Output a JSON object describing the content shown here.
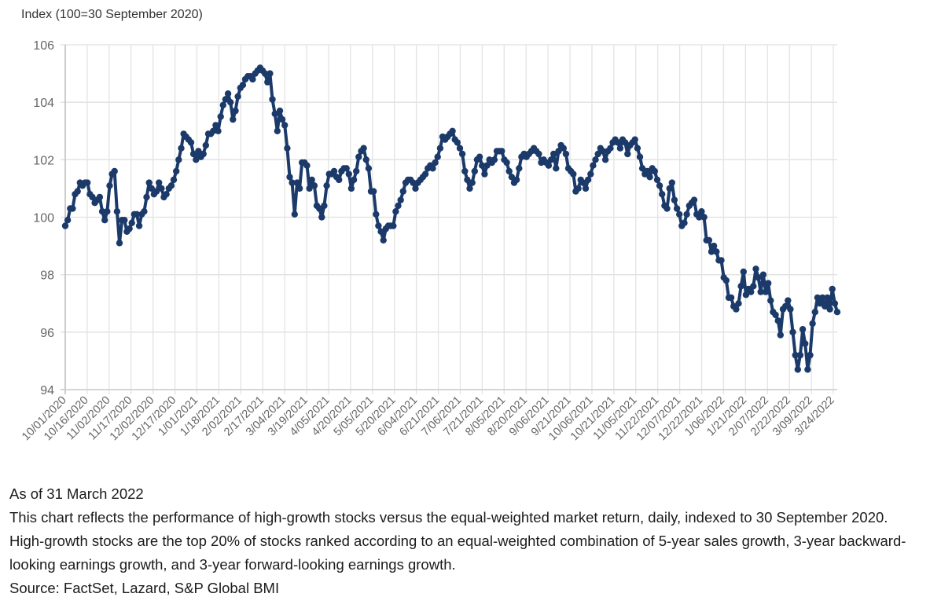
{
  "chart_data": {
    "type": "line",
    "title": "",
    "ylabel": "Index (100=30 September 2020)",
    "xlabel": "",
    "ylim": [
      94,
      106
    ],
    "yticks": [
      94,
      96,
      98,
      100,
      102,
      104,
      106
    ],
    "grid": true,
    "legend": "none",
    "line_color": "#1b3a6a",
    "xtick_labels": [
      "10/01/2020",
      "10/16/2020",
      "11/02/2020",
      "11/17/2020",
      "12/02/2020",
      "12/17/2020",
      "1/01/2021",
      "1/18/2021",
      "2/02/2021",
      "2/17/2021",
      "3/04/2021",
      "3/19/2021",
      "4/05/2021",
      "4/20/2021",
      "5/05/2021",
      "5/20/2021",
      "6/04/2021",
      "6/21/2021",
      "7/06/2021",
      "7/21/2021",
      "8/05/2021",
      "8/20/2021",
      "9/06/2021",
      "9/21/2021",
      "10/06/2021",
      "10/21/2021",
      "11/05/2021",
      "11/22/2021",
      "12/07/2021",
      "12/22/2021",
      "1/06/2022",
      "1/21/2022",
      "2/07/2022",
      "2/22/2022",
      "3/09/2022",
      "3/24/2022"
    ],
    "series": [
      {
        "name": "High-growth stocks vs equal-weighted market",
        "values": [
          99.7,
          99.9,
          100.3,
          100.3,
          100.8,
          100.9,
          101.2,
          101.1,
          101.2,
          101.2,
          100.8,
          100.7,
          100.5,
          100.6,
          100.7,
          100.2,
          99.9,
          100.2,
          101.1,
          101.5,
          101.6,
          100.2,
          99.1,
          99.9,
          99.9,
          99.5,
          99.6,
          99.8,
          100.1,
          100.1,
          99.7,
          100.1,
          100.2,
          100.7,
          101.2,
          101.0,
          100.8,
          100.9,
          101.2,
          101.0,
          100.7,
          100.8,
          101.0,
          101.1,
          101.3,
          101.6,
          102.0,
          102.4,
          102.9,
          102.8,
          102.7,
          102.6,
          102.2,
          102.0,
          102.3,
          102.1,
          102.2,
          102.5,
          102.9,
          102.9,
          103.0,
          103.2,
          103.0,
          103.5,
          103.9,
          104.1,
          104.3,
          104.0,
          103.4,
          103.7,
          104.2,
          104.5,
          104.6,
          104.8,
          104.9,
          104.9,
          104.8,
          105.0,
          105.1,
          105.2,
          105.1,
          105.0,
          104.7,
          105.0,
          104.1,
          103.6,
          103.0,
          103.7,
          103.4,
          103.2,
          102.4,
          101.4,
          101.2,
          100.1,
          101.2,
          101.0,
          101.9,
          101.9,
          101.8,
          101.0,
          101.3,
          101.1,
          100.4,
          100.3,
          100.0,
          100.4,
          101.1,
          101.5,
          101.5,
          101.6,
          101.4,
          101.3,
          101.6,
          101.7,
          101.7,
          101.5,
          101.0,
          101.3,
          101.6,
          102.1,
          102.3,
          102.4,
          102.0,
          101.7,
          100.9,
          100.9,
          100.1,
          99.7,
          99.5,
          99.2,
          99.6,
          99.7,
          99.7,
          99.7,
          100.2,
          100.4,
          100.6,
          100.9,
          101.2,
          101.3,
          101.3,
          101.2,
          101.0,
          101.2,
          101.3,
          101.4,
          101.5,
          101.7,
          101.8,
          101.7,
          101.9,
          102.1,
          102.4,
          102.8,
          102.7,
          102.8,
          102.9,
          103.0,
          102.7,
          102.6,
          102.4,
          102.2,
          101.6,
          101.3,
          101.0,
          101.2,
          101.6,
          102.0,
          102.1,
          101.8,
          101.5,
          101.8,
          102.0,
          101.9,
          102.0,
          102.3,
          102.3,
          102.3,
          102.0,
          101.9,
          101.6,
          101.4,
          101.2,
          101.3,
          101.7,
          102.1,
          102.2,
          102.1,
          102.2,
          102.3,
          102.4,
          102.3,
          102.2,
          101.9,
          102.0,
          101.9,
          101.8,
          102.0,
          102.2,
          101.7,
          102.3,
          102.5,
          102.4,
          102.2,
          101.7,
          101.6,
          101.5,
          100.9,
          101.0,
          101.3,
          101.2,
          101.0,
          101.3,
          101.5,
          101.8,
          102.0,
          102.2,
          102.4,
          102.3,
          102.0,
          102.3,
          102.4,
          102.6,
          102.7,
          102.6,
          102.4,
          102.7,
          102.6,
          102.2,
          102.5,
          102.6,
          102.7,
          102.4,
          102.1,
          101.7,
          101.5,
          101.6,
          101.4,
          101.7,
          101.6,
          101.3,
          101.1,
          100.8,
          100.4,
          100.3,
          101.0,
          101.2,
          100.6,
          100.3,
          100.1,
          99.7,
          99.8,
          100.1,
          100.4,
          100.5,
          100.6,
          100.1,
          100.0,
          100.2,
          100.0,
          99.2,
          99.2,
          98.8,
          99.0,
          98.8,
          98.5,
          98.5,
          97.9,
          97.8,
          97.2,
          97.2,
          96.9,
          96.8,
          97.0,
          97.6,
          98.1,
          97.3,
          97.5,
          97.4,
          97.6,
          98.2,
          97.9,
          97.4,
          98.0,
          97.4,
          97.7,
          97.1,
          96.7,
          96.6,
          96.4,
          95.9,
          96.8,
          96.9,
          97.1,
          96.8,
          96.0,
          95.2,
          94.7,
          95.2,
          96.1,
          95.6,
          94.7,
          95.2,
          96.3,
          96.7,
          97.2,
          97.0,
          97.2,
          96.9,
          97.2,
          96.8,
          97.5,
          97.0,
          96.7
        ]
      }
    ]
  },
  "caption": {
    "as_of": "As of 31 March 2022",
    "description": "This chart reflects the performance of high-growth stocks versus the equal-weighted market return, daily, indexed to 30 September 2020. High-growth stocks are the top 20% of stocks ranked according to an equal-weighted combination of 5-year sales growth, 3-year backward-looking earnings growth, and 3-year forward-looking earnings growth.",
    "source": "Source: FactSet, Lazard, S&P Global BMI"
  }
}
